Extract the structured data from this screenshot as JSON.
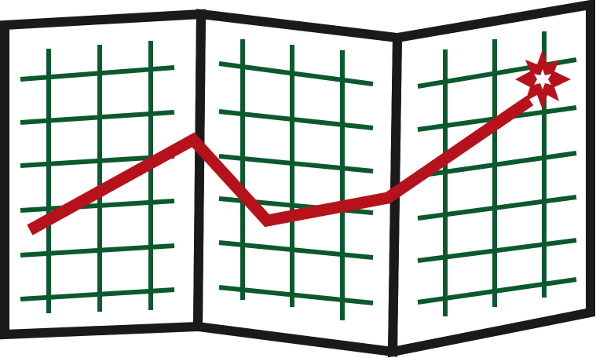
{
  "illustration": {
    "subject": "folded-map-route-icon",
    "panel_count": 3,
    "colors": {
      "background": "#ffffff",
      "frame": "#1a1a1a",
      "grid": "#0b5a2e",
      "route": "#b5121b",
      "marker_fill": "#ffffff"
    },
    "icons": [
      "folded-map-icon",
      "route-line",
      "destination-star-icon"
    ]
  }
}
